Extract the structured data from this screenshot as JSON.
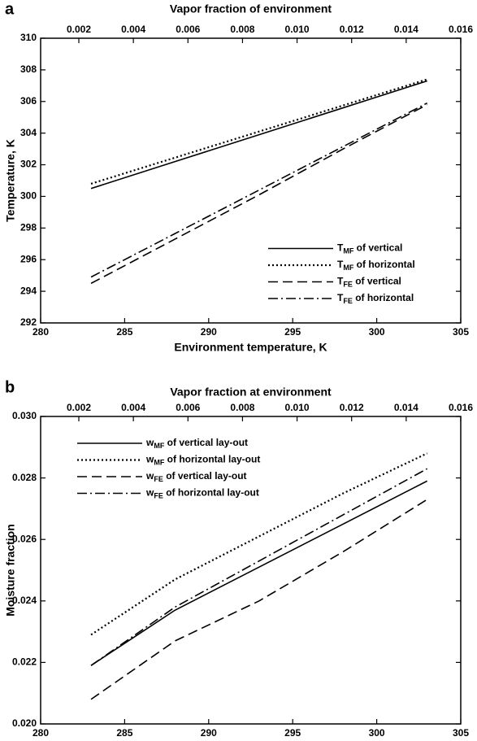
{
  "chart_data": [
    {
      "type": "line",
      "panel_label": "a",
      "xlabel": "Environment temperature, K",
      "ylabel": "Temperature, K",
      "x2label": "Vapor fraction of environment",
      "xlim": [
        280,
        305
      ],
      "xticks": [
        280,
        285,
        290,
        295,
        300,
        305
      ],
      "ylim": [
        292,
        310
      ],
      "yticks": [
        292,
        294,
        296,
        298,
        300,
        302,
        304,
        306,
        308,
        310
      ],
      "x2lim": [
        0.0006,
        0.016
      ],
      "x2ticks": [
        0.002,
        0.004,
        0.006,
        0.008,
        {
          "value": 0.01,
          "label": "0.010"
        },
        0.012,
        0.014,
        0.016
      ],
      "legend": "lower right",
      "x": [
        283,
        288,
        293,
        298,
        303
      ],
      "series": [
        {
          "name": "TMF of vertical",
          "color": "#000000",
          "style": "solid",
          "values": [
            300.5,
            302.2,
            303.9,
            305.6,
            307.3
          ]
        },
        {
          "name": "TMF of horizontal",
          "color": "#000000",
          "style": "dotted",
          "values": [
            300.8,
            302.45,
            304.1,
            305.75,
            307.4
          ]
        },
        {
          "name": "TFE of vertical",
          "color": "#000000",
          "style": "dashed",
          "values": [
            294.5,
            297.3,
            300.1,
            303.0,
            305.8
          ]
        },
        {
          "name": "TFE of horizontal",
          "color": "#000000",
          "style": "dashdot",
          "values": [
            294.9,
            297.65,
            300.4,
            303.15,
            305.9
          ]
        }
      ]
    },
    {
      "type": "line",
      "panel_label": "b",
      "xlabel": "Environment temperature, K",
      "ylabel": "Moisture fraction",
      "x2label": "Vapor fraction at environment",
      "xlim": [
        280,
        305
      ],
      "xticks": [
        280,
        285,
        290,
        295,
        300,
        305
      ],
      "ylim": [
        0.02,
        0.03
      ],
      "yticks": [
        {
          "value": 0.02,
          "label": "0.020"
        },
        0.022,
        0.024,
        0.026,
        0.028,
        {
          "value": 0.03,
          "label": "0.030"
        }
      ],
      "x2lim": [
        0.0006,
        0.016
      ],
      "x2ticks": [
        0.002,
        0.004,
        0.006,
        0.008,
        {
          "value": 0.01,
          "label": "0.010"
        },
        0.012,
        0.014,
        0.016
      ],
      "legend": "upper left",
      "x": [
        283,
        288,
        293,
        298,
        303
      ],
      "series": [
        {
          "name": "wMF of vertical lay-out",
          "color": "#000000",
          "style": "solid",
          "values": [
            0.0219,
            0.0237,
            0.0251,
            0.0265,
            0.0279
          ]
        },
        {
          "name": "wMF of horizontal lay-out",
          "color": "#000000",
          "style": "dotted",
          "values": [
            0.0229,
            0.0247,
            0.0261,
            0.0275,
            0.0288
          ]
        },
        {
          "name": "wFE of vertical lay-out",
          "color": "#000000",
          "style": "dashed",
          "values": [
            0.0208,
            0.0227,
            0.024,
            0.0256,
            0.0273
          ]
        },
        {
          "name": "wFE of horizontal lay-out",
          "color": "#000000",
          "style": "dashdot",
          "values": [
            0.0219,
            0.0238,
            0.0253,
            0.0268,
            0.0283
          ]
        }
      ]
    }
  ]
}
